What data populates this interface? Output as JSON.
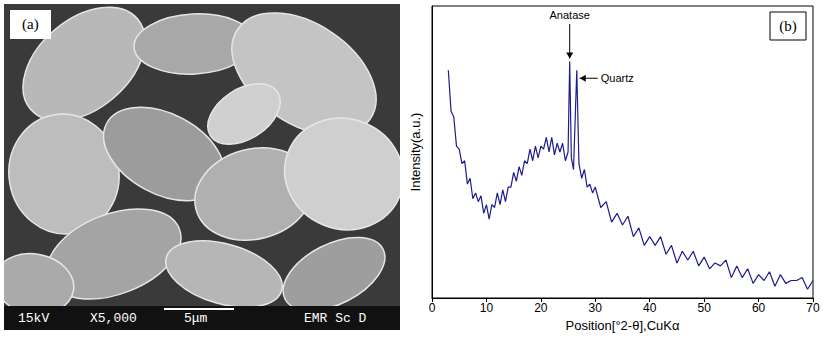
{
  "image_panel": {
    "label": "(a)",
    "info": [
      "15kV",
      "X5,000",
      "5μm",
      "EMR Sc D"
    ]
  },
  "chart_data": {
    "type": "line",
    "panel_label": "(b)",
    "x_label": "Position[°2-θ],CuKα",
    "y_label": "Intensity(a.u.)",
    "x": [
      3,
      3.5,
      4,
      4.5,
      5,
      5.5,
      6,
      6.5,
      7,
      7.5,
      8,
      8.5,
      9,
      9.5,
      10,
      10.5,
      11,
      11.5,
      12,
      12.5,
      13,
      13.5,
      14,
      14.5,
      15,
      15.5,
      16,
      16.5,
      17,
      17.5,
      18,
      18.5,
      19,
      19.5,
      20,
      20.5,
      21,
      21.5,
      22,
      22.5,
      23,
      23.5,
      24,
      24.5,
      25,
      25.3,
      25.6,
      26,
      26.6,
      27,
      27.5,
      28,
      28.5,
      29,
      29.5,
      30,
      31,
      32,
      33,
      34,
      35,
      36,
      37,
      38,
      39,
      40,
      41,
      42,
      43,
      44,
      45,
      46,
      47,
      48,
      49,
      50,
      51,
      52,
      53,
      54,
      55,
      56,
      57,
      58,
      59,
      60,
      61,
      62,
      63,
      64,
      65,
      66,
      67,
      68,
      69,
      70
    ],
    "values": [
      78,
      64,
      62,
      52,
      51,
      46,
      47,
      39,
      41,
      34,
      36,
      33,
      35,
      29,
      32,
      27,
      32,
      31,
      36,
      32,
      37,
      33,
      38,
      38,
      43,
      40,
      45,
      42,
      47,
      46,
      51,
      47,
      52,
      48,
      52,
      51,
      55,
      50,
      55,
      49,
      53,
      50,
      53,
      47,
      50,
      81,
      48,
      44,
      78,
      46,
      41,
      44,
      38,
      39,
      36,
      38,
      31,
      33,
      26,
      29,
      25,
      28,
      21,
      24,
      18,
      21,
      18,
      21,
      15,
      18,
      12,
      16,
      13,
      16,
      11,
      14,
      10,
      12,
      11,
      13,
      7,
      11,
      7,
      10,
      5,
      8,
      6,
      9,
      4,
      8,
      5,
      6,
      6,
      7,
      3,
      6
    ],
    "color": "#1c1c8f",
    "xlim": [
      0,
      70
    ],
    "xticks": [
      0,
      10,
      20,
      30,
      40,
      50,
      60,
      70
    ],
    "ylim": [
      0,
      100
    ],
    "tick_labels": "x",
    "grid": false,
    "annotations": [
      {
        "text": "Anatase",
        "x": 25.3,
        "y": 81
      },
      {
        "text": "Quartz",
        "x": 26.6,
        "y": 78
      }
    ]
  }
}
